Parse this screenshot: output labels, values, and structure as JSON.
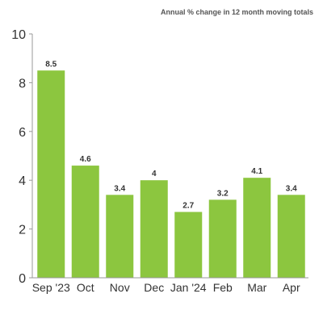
{
  "chart_data": {
    "type": "bar",
    "subtitle": "Annual % change in 12 month moving totals",
    "categories": [
      "Sep '23",
      "Oct",
      "Nov",
      "Dec",
      "Jan '24",
      "Feb",
      "Mar",
      "Apr"
    ],
    "values": [
      8.5,
      4.6,
      3.4,
      4,
      2.7,
      3.2,
      4.1,
      3.4
    ],
    "value_labels": [
      "8.5",
      "4.6",
      "3.4",
      "4",
      "2.7",
      "3.2",
      "4.1",
      "3.4"
    ],
    "ylim": [
      0,
      10
    ],
    "yticks": [
      0,
      2,
      4,
      6,
      8,
      10
    ],
    "grid": false,
    "bar_color": "#8cc63f"
  }
}
